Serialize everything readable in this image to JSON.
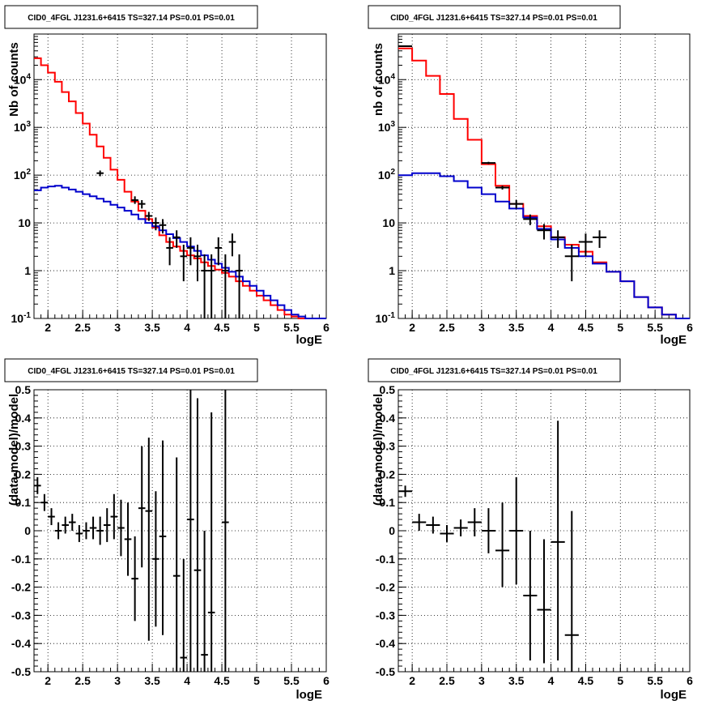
{
  "chart_data": [
    {
      "type": "line",
      "title": "CID0_4FGL J1231.6+6415 TS=327.14 PS=0.01 PS=0.01",
      "xlabel": "logE",
      "ylabel": "Nb of counts",
      "xlim": [
        1.8,
        6
      ],
      "ylim": [
        0.1,
        90000
      ],
      "yscale": "log",
      "grid": true,
      "x_ticks": [
        "2",
        "2.5",
        "3",
        "3.5",
        "4",
        "4.5",
        "5",
        "5.5",
        "6"
      ],
      "y_ticks": [
        "10^-1",
        "1",
        "10",
        "10^2",
        "10^3",
        "10^4"
      ],
      "bin_edges": [
        1.8,
        1.9,
        2.0,
        2.1,
        2.2,
        2.3,
        2.4,
        2.5,
        2.6,
        2.7,
        2.8,
        2.9,
        3.0,
        3.1,
        3.2,
        3.3,
        3.4,
        3.5,
        3.6,
        3.7,
        3.8,
        3.9,
        4.0,
        4.1,
        4.2,
        4.3,
        4.4,
        4.5,
        4.6,
        4.7,
        4.8,
        4.9,
        5.0,
        5.1,
        5.2,
        5.3,
        5.4,
        5.5,
        5.6,
        5.7,
        5.8,
        5.9,
        6.0
      ],
      "series": [
        {
          "color": "#ff0000",
          "values": [
            28000,
            20000,
            14000,
            9000,
            5500,
            3500,
            2000,
            1200,
            700,
            400,
            230,
            130,
            80,
            45,
            28,
            18,
            12,
            8,
            5.5,
            4,
            3.2,
            2.6,
            2.1,
            1.8,
            1.5,
            1.25,
            1.05,
            0.9,
            0.75,
            0.6,
            0.48,
            0.38,
            0.3,
            0.24,
            0.19,
            0.15,
            0.12,
            0.11,
            0.1,
            0.1,
            0.1,
            0.1
          ]
        },
        {
          "color": "#0000cc",
          "values": [
            48,
            55,
            58,
            60,
            55,
            50,
            45,
            40,
            36,
            32,
            28,
            24,
            21,
            18,
            15,
            12,
            10,
            8.5,
            7,
            5.8,
            4.8,
            4,
            3.2,
            2.6,
            2.1,
            1.7,
            1.4,
            1.15,
            0.95,
            0.75,
            0.6,
            0.48,
            0.38,
            0.3,
            0.24,
            0.19,
            0.15,
            0.12,
            0.11,
            0.1,
            0.1,
            0.1
          ]
        }
      ],
      "points": [
        {
          "x": 2.75,
          "y": 110,
          "lo": 95,
          "hi": 125
        },
        {
          "x": 3.25,
          "y": 30,
          "lo": 25,
          "hi": 36
        },
        {
          "x": 3.35,
          "y": 25,
          "lo": 20,
          "hi": 30
        },
        {
          "x": 3.45,
          "y": 14,
          "lo": 11,
          "hi": 17
        },
        {
          "x": 3.55,
          "y": 10,
          "lo": 7,
          "hi": 13
        },
        {
          "x": 3.65,
          "y": 9,
          "lo": 6,
          "hi": 12
        },
        {
          "x": 3.75,
          "y": 3,
          "lo": 1.3,
          "hi": 5
        },
        {
          "x": 3.85,
          "y": 5,
          "lo": 3,
          "hi": 7
        },
        {
          "x": 3.95,
          "y": 2,
          "lo": 0.6,
          "hi": 3.5
        },
        {
          "x": 4.05,
          "y": 3,
          "lo": 1.3,
          "hi": 5
        },
        {
          "x": 4.15,
          "y": 2,
          "lo": 0.6,
          "hi": 3.5
        },
        {
          "x": 4.25,
          "y": 1,
          "lo": 0.1,
          "hi": 2.2
        },
        {
          "x": 4.35,
          "y": 1,
          "lo": 0.1,
          "hi": 2.2
        },
        {
          "x": 4.45,
          "y": 3,
          "lo": 1.3,
          "hi": 5
        },
        {
          "x": 4.55,
          "y": 1,
          "lo": 0.1,
          "hi": 2.2
        },
        {
          "x": 4.65,
          "y": 4,
          "lo": 2,
          "hi": 6
        },
        {
          "x": 4.75,
          "y": 1,
          "lo": 0.1,
          "hi": 2.2
        }
      ],
      "point_xerr": 0.05
    },
    {
      "type": "line",
      "title": "CID0_4FGL J1231.6+6415 TS=327.14 PS=0.01 PS=0.01",
      "xlabel": "logE",
      "ylabel": "nb of counts",
      "xlim": [
        1.8,
        6
      ],
      "ylim": [
        0.1,
        90000
      ],
      "yscale": "log",
      "grid": true,
      "x_ticks": [
        "2",
        "2.5",
        "3",
        "3.5",
        "4",
        "4.5",
        "5",
        "5.5",
        "6"
      ],
      "y_ticks": [
        "10^-1",
        "1",
        "10",
        "10^2",
        "10^3",
        "10^4"
      ],
      "bin_edges": [
        1.8,
        2.0,
        2.2,
        2.4,
        2.6,
        2.8,
        3.0,
        3.2,
        3.4,
        3.6,
        3.8,
        4.0,
        4.2,
        4.4,
        4.6,
        4.8,
        5.0,
        5.2,
        5.4,
        5.6,
        5.8,
        6.0
      ],
      "series": [
        {
          "color": "#ff0000",
          "values": [
            45000,
            25000,
            12000,
            5000,
            1500,
            550,
            170,
            60,
            25,
            14,
            8.5,
            5,
            3.5,
            2.5,
            1.5,
            0.95,
            0.6,
            0.28,
            0.17,
            0.12,
            0.1
          ]
        },
        {
          "color": "#0000cc",
          "values": [
            100,
            110,
            110,
            95,
            75,
            55,
            40,
            28,
            20,
            13,
            7.5,
            4.5,
            3,
            2,
            1.4,
            0.95,
            0.6,
            0.28,
            0.17,
            0.12,
            0.1
          ]
        }
      ],
      "points": [
        {
          "x": 1.9,
          "y": 50000,
          "lo": 49000,
          "hi": 51000
        },
        {
          "x": 3.1,
          "y": 180,
          "lo": 170,
          "hi": 190
        },
        {
          "x": 3.3,
          "y": 55,
          "lo": 50,
          "hi": 60
        },
        {
          "x": 3.5,
          "y": 25,
          "lo": 20,
          "hi": 30
        },
        {
          "x": 3.7,
          "y": 12,
          "lo": 9,
          "hi": 15
        },
        {
          "x": 3.9,
          "y": 7,
          "lo": 4.5,
          "hi": 9.5
        },
        {
          "x": 4.1,
          "y": 5,
          "lo": 3,
          "hi": 7
        },
        {
          "x": 4.3,
          "y": 2,
          "lo": 0.6,
          "hi": 3.5
        },
        {
          "x": 4.5,
          "y": 4,
          "lo": 2,
          "hi": 6
        },
        {
          "x": 4.7,
          "y": 5,
          "lo": 3,
          "hi": 7
        }
      ],
      "point_xerr": 0.1
    },
    {
      "type": "scatter",
      "title": "CID0_4FGL J1231.6+6415 TS=327.14 PS=0.01 PS=0.01",
      "xlabel": "logE",
      "ylabel": "(data-model)/model",
      "xlim": [
        1.8,
        6
      ],
      "ylim": [
        -0.5,
        0.5
      ],
      "yscale": "linear",
      "grid": true,
      "x_ticks": [
        "2",
        "2.5",
        "3",
        "3.5",
        "4",
        "4.5",
        "5",
        "5.5",
        "6"
      ],
      "y_ticks": [
        "-0.5",
        "-0.4",
        "-0.3",
        "-0.2",
        "-0.1",
        "0",
        "0.1",
        "0.2",
        "0.3",
        "0.4",
        "0.5"
      ],
      "points": [
        {
          "x": 1.85,
          "y": 0.16,
          "lo": 0.13,
          "hi": 0.19
        },
        {
          "x": 1.95,
          "y": 0.1,
          "lo": 0.07,
          "hi": 0.13
        },
        {
          "x": 2.05,
          "y": 0.05,
          "lo": 0.02,
          "hi": 0.08
        },
        {
          "x": 2.15,
          "y": 0.0,
          "lo": -0.03,
          "hi": 0.03
        },
        {
          "x": 2.25,
          "y": 0.02,
          "lo": -0.01,
          "hi": 0.05
        },
        {
          "x": 2.35,
          "y": 0.03,
          "lo": 0.0,
          "hi": 0.06
        },
        {
          "x": 2.45,
          "y": -0.01,
          "lo": -0.04,
          "hi": 0.02
        },
        {
          "x": 2.55,
          "y": 0.0,
          "lo": -0.03,
          "hi": 0.03
        },
        {
          "x": 2.65,
          "y": 0.01,
          "lo": -0.03,
          "hi": 0.05
        },
        {
          "x": 2.75,
          "y": 0.0,
          "lo": -0.05,
          "hi": 0.05
        },
        {
          "x": 2.85,
          "y": 0.02,
          "lo": -0.04,
          "hi": 0.08
        },
        {
          "x": 2.95,
          "y": 0.05,
          "lo": -0.03,
          "hi": 0.13
        },
        {
          "x": 3.05,
          "y": 0.01,
          "lo": -0.09,
          "hi": 0.11
        },
        {
          "x": 3.15,
          "y": -0.03,
          "lo": -0.16,
          "hi": 0.1
        },
        {
          "x": 3.25,
          "y": -0.17,
          "lo": -0.32,
          "hi": -0.02
        },
        {
          "x": 3.35,
          "y": 0.08,
          "lo": -0.13,
          "hi": 0.3
        },
        {
          "x": 3.45,
          "y": 0.07,
          "lo": -0.39,
          "hi": 0.33
        },
        {
          "x": 3.55,
          "y": -0.1,
          "lo": -0.34,
          "hi": 0.14
        },
        {
          "x": 3.65,
          "y": -0.02,
          "lo": -0.37,
          "hi": 0.32
        },
        {
          "x": 3.85,
          "y": -0.16,
          "lo": -0.5,
          "hi": 0.26
        },
        {
          "x": 3.95,
          "y": -0.45,
          "lo": -0.5,
          "hi": -0.1
        },
        {
          "x": 4.05,
          "y": 0.04,
          "lo": -0.5,
          "hi": 0.5
        },
        {
          "x": 4.15,
          "y": -0.14,
          "lo": -0.5,
          "hi": 0.47
        },
        {
          "x": 4.25,
          "y": -0.44,
          "lo": -0.5,
          "hi": 0.0
        },
        {
          "x": 4.35,
          "y": -0.29,
          "lo": -0.5,
          "hi": 0.42
        },
        {
          "x": 4.55,
          "y": 0.03,
          "lo": -0.5,
          "hi": 0.5
        }
      ],
      "point_xerr": 0.05
    },
    {
      "type": "scatter",
      "title": "CID0_4FGL J1231.6+6415 TS=327.14 PS=0.01 PS=0.01",
      "xlabel": "logE",
      "ylabel": "(data-model)/model",
      "xlim": [
        1.8,
        6
      ],
      "ylim": [
        -0.5,
        0.5
      ],
      "yscale": "linear",
      "grid": true,
      "x_ticks": [
        "2",
        "2.5",
        "3",
        "3.5",
        "4",
        "4.5",
        "5",
        "5.5",
        "6"
      ],
      "y_ticks": [
        "-0.5",
        "-0.4",
        "-0.3",
        "-0.2",
        "-0.1",
        "0",
        "0.1",
        "0.2",
        "0.3",
        "0.4",
        "0.5"
      ],
      "points": [
        {
          "x": 1.9,
          "y": 0.14,
          "lo": 0.12,
          "hi": 0.16
        },
        {
          "x": 2.1,
          "y": 0.03,
          "lo": 0.0,
          "hi": 0.06
        },
        {
          "x": 2.3,
          "y": 0.02,
          "lo": -0.01,
          "hi": 0.05
        },
        {
          "x": 2.5,
          "y": -0.01,
          "lo": -0.04,
          "hi": 0.02
        },
        {
          "x": 2.7,
          "y": 0.01,
          "lo": -0.02,
          "hi": 0.04
        },
        {
          "x": 2.9,
          "y": 0.03,
          "lo": -0.02,
          "hi": 0.08
        },
        {
          "x": 3.1,
          "y": 0.0,
          "lo": -0.08,
          "hi": 0.08
        },
        {
          "x": 3.3,
          "y": -0.07,
          "lo": -0.2,
          "hi": 0.1
        },
        {
          "x": 3.5,
          "y": 0.0,
          "lo": -0.19,
          "hi": 0.19
        },
        {
          "x": 3.7,
          "y": -0.23,
          "lo": -0.46,
          "hi": 0.0
        },
        {
          "x": 3.9,
          "y": -0.28,
          "lo": -0.47,
          "hi": -0.03
        },
        {
          "x": 4.1,
          "y": -0.04,
          "lo": -0.46,
          "hi": 0.39
        },
        {
          "x": 4.3,
          "y": -0.37,
          "lo": -0.5,
          "hi": 0.07
        }
      ],
      "point_xerr": 0.1
    }
  ]
}
